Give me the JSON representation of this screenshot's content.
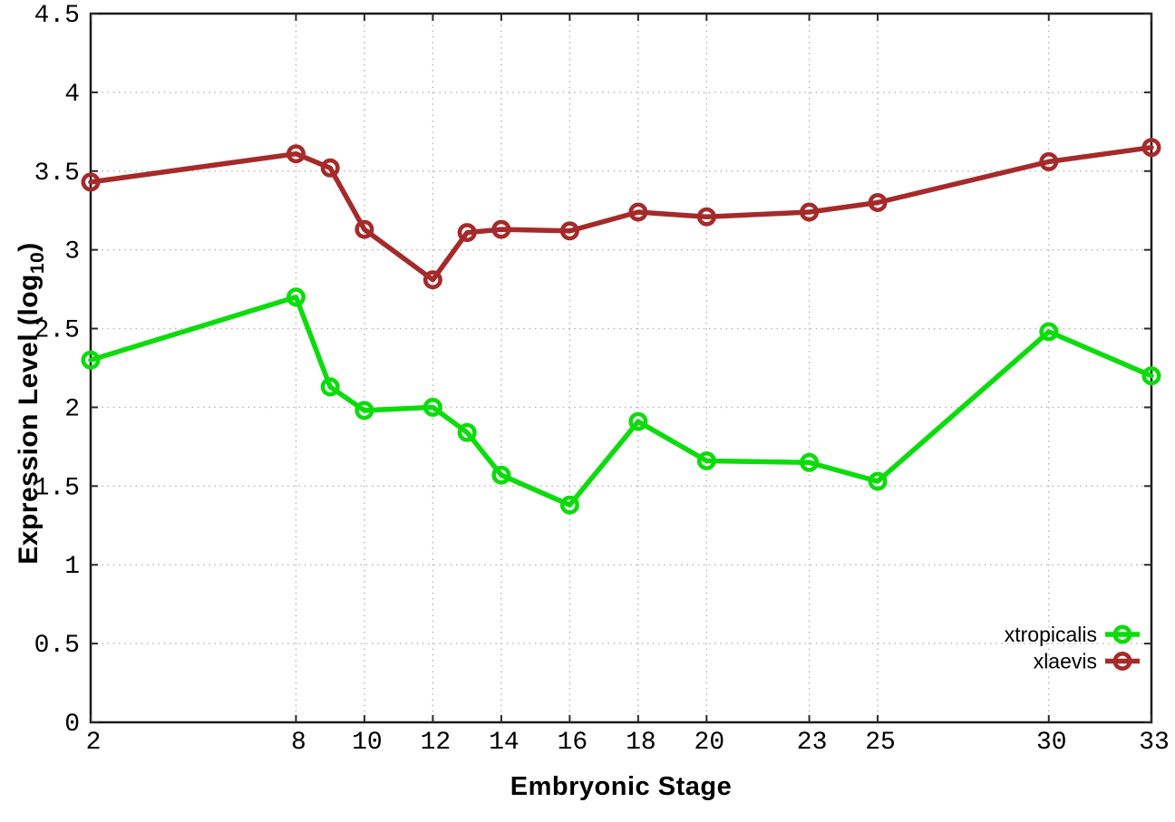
{
  "page": {
    "background": "#ffffff"
  },
  "chart_data": {
    "type": "line",
    "title": "",
    "xlabel": "Embryonic Stage",
    "ylabel": "Expression Level (log10)",
    "ylabel_parts": {
      "prefix": "Expression Level (log",
      "sub": "10",
      "suffix": ")"
    },
    "xlim": [
      2,
      33
    ],
    "ylim": [
      0,
      4.5
    ],
    "xticks": [
      2,
      8,
      10,
      12,
      14,
      16,
      18,
      20,
      23,
      25,
      30,
      33
    ],
    "yticks": [
      0,
      0.5,
      1,
      1.5,
      2,
      2.5,
      3,
      3.5,
      4,
      4.5
    ],
    "ytick_labels": [
      "0",
      "0.5",
      "1",
      "1.5",
      "2",
      "2.5",
      "3",
      "3.5",
      "4",
      "4.5"
    ],
    "grid": "dotted",
    "grid_on": true,
    "legend_position": "inside-bottom-right",
    "x": [
      2,
      8,
      9,
      10,
      12,
      13,
      14,
      16,
      18,
      20,
      23,
      25,
      30,
      33
    ],
    "series": [
      {
        "name": "xtropicalis",
        "color": "#0cdc0c",
        "marker": "open-circle",
        "values": [
          2.3,
          2.7,
          2.13,
          1.98,
          2.0,
          1.84,
          1.57,
          1.38,
          1.91,
          1.66,
          1.65,
          1.53,
          2.48,
          2.2
        ]
      },
      {
        "name": "xlaevis",
        "color": "#a62a2a",
        "marker": "open-circle",
        "values": [
          3.43,
          3.61,
          3.52,
          3.13,
          2.81,
          3.11,
          3.13,
          3.12,
          3.24,
          3.21,
          3.24,
          3.3,
          3.56,
          3.65
        ]
      }
    ],
    "colors": {
      "grid": "#b8b8b8",
      "axis_border": "#1a1a1a",
      "tick": "#2a2a2a",
      "text": "#000000"
    }
  }
}
